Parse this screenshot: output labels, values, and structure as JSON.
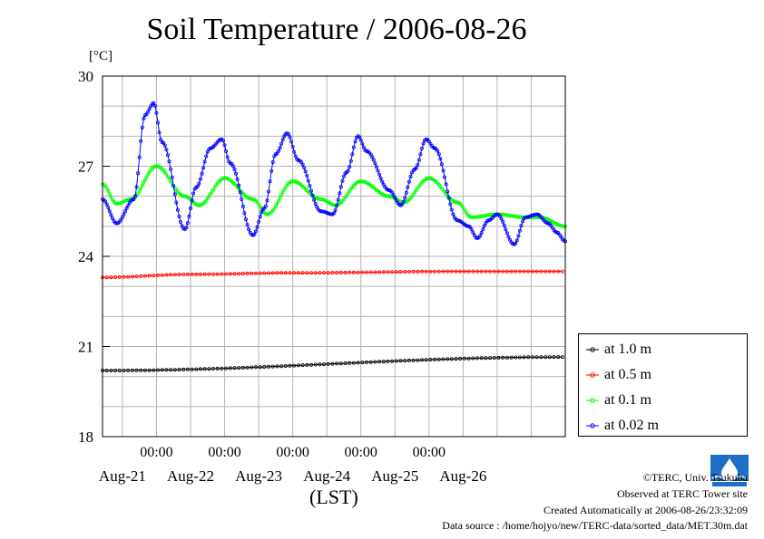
{
  "title": "Soil Temperature / 2006-08-26",
  "unit_label": "[°C]",
  "xlabel": "(LST)",
  "colors": {
    "1.0m": "#000000",
    "0.5m": "#ff0000",
    "0.1m": "#00ff00",
    "0.02m": "#0000ff"
  },
  "footer": {
    "copyright": "©TERC, Univ. Tsukuba",
    "observed": "Observed at TERC Tower site",
    "created": "Created Automatically at 2006-08-26/23:32:09",
    "source": "Data source : /home/hojyo/new/TERC-data/sorted_data/MET.30m.dat"
  },
  "chart_data": {
    "type": "line",
    "title": "Soil Temperature / 2006-08-26",
    "xlabel": "(LST)",
    "ylabel": "[°C]",
    "xlim": [
      "2006-08-20 05:00",
      "2006-08-27 00:00"
    ],
    "ylim": [
      18,
      30
    ],
    "yticks": [
      18,
      21,
      24,
      27,
      30
    ],
    "xtick_time_labels": [
      "00:00",
      "00:00",
      "00:00",
      "00:00",
      "00:00"
    ],
    "xtick_date_labels": [
      "Aug-21",
      "Aug-22",
      "Aug-23",
      "Aug-24",
      "Aug-25",
      "Aug-26"
    ],
    "grid": true,
    "legend_position": "right",
    "series": [
      {
        "name": "at 1.0 m",
        "color": "#000000",
        "x": [
          "2006-08-20 05:00",
          "2006-08-27 00:00"
        ],
        "y": [
          20.2,
          20.65
        ]
      },
      {
        "name": "at 0.5 m",
        "color": "#ff0000",
        "x": [
          "2006-08-20 05:00",
          "2006-08-21 12:00",
          "2006-08-23 00:00",
          "2006-08-25 12:00",
          "2006-08-27 00:00"
        ],
        "y": [
          23.3,
          23.4,
          23.45,
          23.5,
          23.5
        ]
      },
      {
        "name": "at 0.1 m",
        "color": "#00ff00",
        "x": [
          "2006-08-20 05:00",
          "2006-08-20 10:00",
          "2006-08-20 15:00",
          "2006-08-21 00:00",
          "2006-08-21 10:00",
          "2006-08-21 15:00",
          "2006-08-22 00:00",
          "2006-08-22 10:00",
          "2006-08-22 15:00",
          "2006-08-23 00:00",
          "2006-08-23 10:00",
          "2006-08-23 15:00",
          "2006-08-24 00:00",
          "2006-08-24 10:00",
          "2006-08-24 15:00",
          "2006-08-25 00:00",
          "2006-08-25 10:00",
          "2006-08-25 15:00",
          "2006-08-26 00:00",
          "2006-08-26 10:00",
          "2006-08-26 15:00",
          "2006-08-27 00:00"
        ],
        "y": [
          26.4,
          25.75,
          25.9,
          27.0,
          26.0,
          25.7,
          26.6,
          25.9,
          25.4,
          26.5,
          25.9,
          25.7,
          26.5,
          26.0,
          25.8,
          26.6,
          25.8,
          25.3,
          25.4,
          25.3,
          25.3,
          25.0
        ]
      },
      {
        "name": "at 0.02 m",
        "color": "#0000ff",
        "x": [
          "2006-08-20 05:00",
          "2006-08-20 10:00",
          "2006-08-20 16:00",
          "2006-08-20 20:00",
          "2006-08-20 23:00",
          "2006-08-21 02:00",
          "2006-08-21 10:00",
          "2006-08-21 14:00",
          "2006-08-21 19:00",
          "2006-08-21 23:00",
          "2006-08-22 02:00",
          "2006-08-22 10:00",
          "2006-08-22 14:00",
          "2006-08-22 18:00",
          "2006-08-22 22:00",
          "2006-08-23 02:00",
          "2006-08-23 10:00",
          "2006-08-23 14:00",
          "2006-08-23 19:00",
          "2006-08-23 23:00",
          "2006-08-24 02:00",
          "2006-08-24 10:00",
          "2006-08-24 14:00",
          "2006-08-24 19:00",
          "2006-08-24 23:00",
          "2006-08-25 02:00",
          "2006-08-25 10:00",
          "2006-08-25 14:00",
          "2006-08-25 17:00",
          "2006-08-25 21:00",
          "2006-08-26 00:00",
          "2006-08-26 06:00",
          "2006-08-26 10:00",
          "2006-08-26 14:00",
          "2006-08-26 18:00",
          "2006-08-26 21:00",
          "2006-08-27 00:00"
        ],
        "y": [
          25.9,
          25.1,
          25.9,
          28.7,
          29.1,
          27.8,
          24.9,
          26.3,
          27.6,
          27.9,
          27.1,
          24.7,
          25.6,
          27.4,
          28.1,
          27.2,
          25.5,
          25.4,
          26.8,
          28.0,
          27.5,
          26.2,
          25.7,
          26.9,
          27.9,
          27.6,
          25.2,
          25.0,
          24.6,
          25.2,
          25.4,
          24.4,
          25.3,
          25.4,
          25.1,
          24.8,
          24.5
        ]
      }
    ]
  }
}
